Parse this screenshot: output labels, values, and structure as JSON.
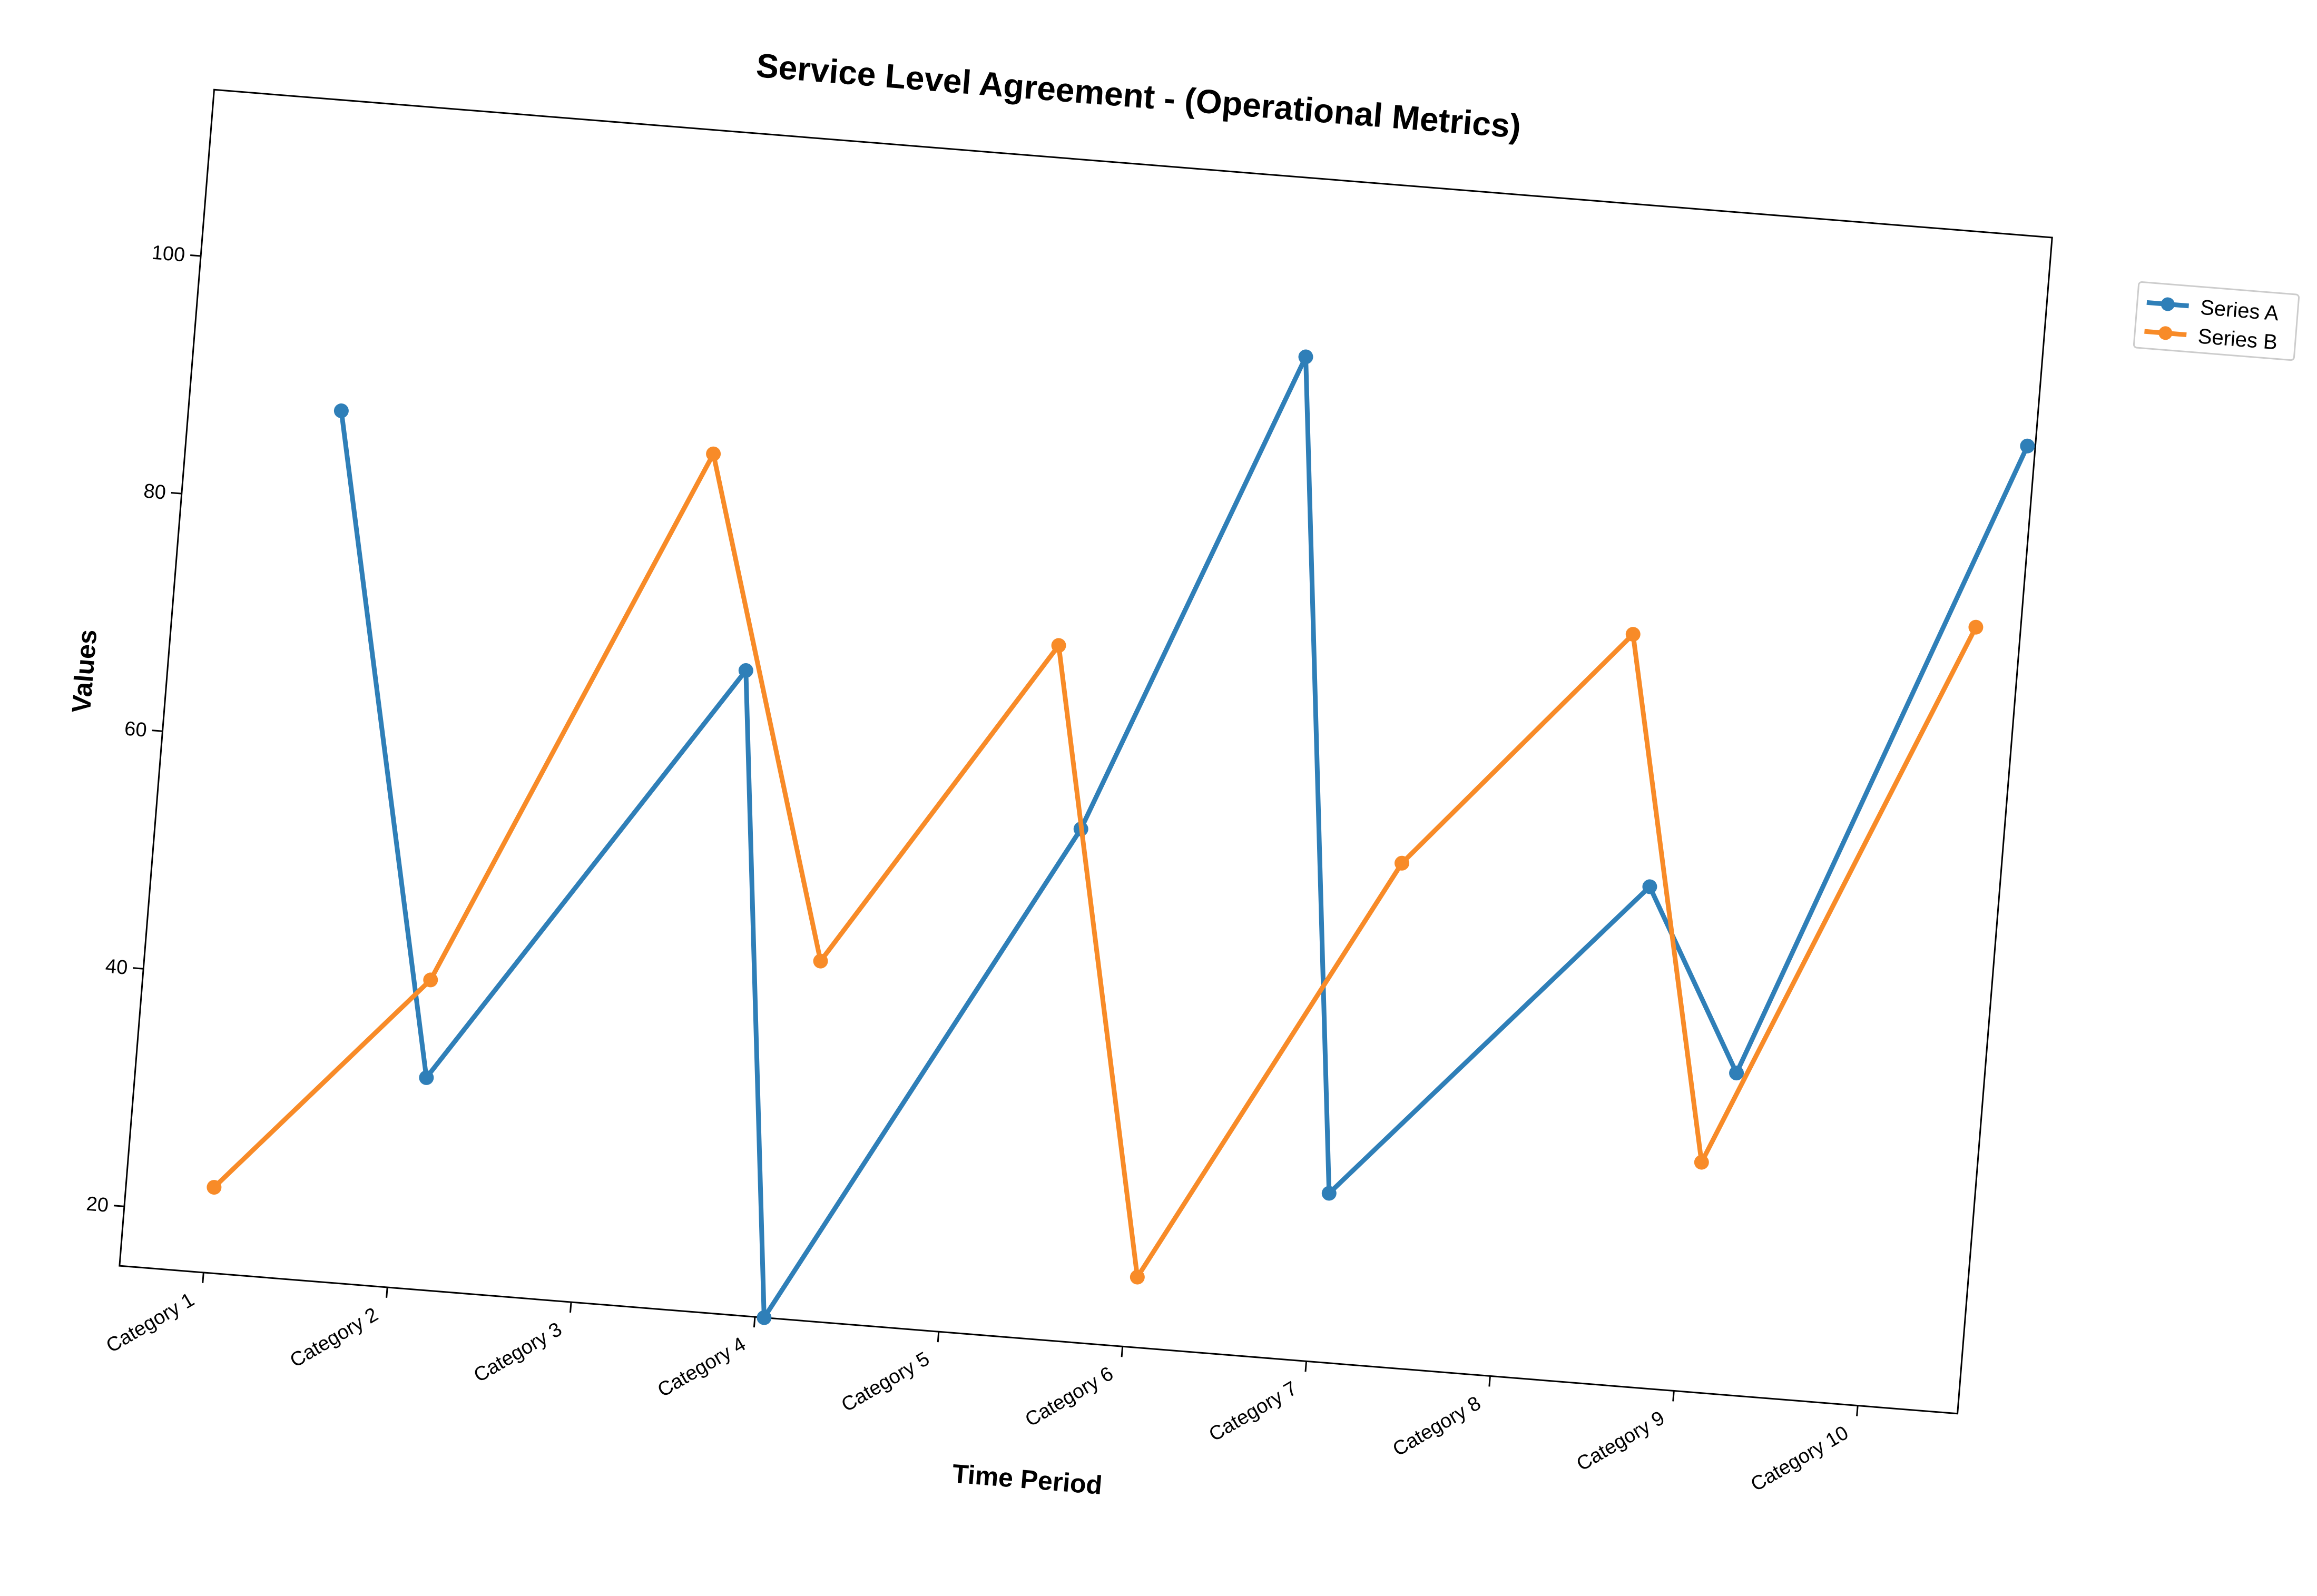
{
  "chart_data": {
    "type": "line",
    "title": "Service Level Agreement - (Operational Metrics)",
    "xlabel": "Time Period",
    "ylabel": "Values",
    "categories": [
      "Category 1",
      "Category 2",
      "Category 3",
      "Category 4",
      "Category 5",
      "Category 6",
      "Category 7",
      "Category 8",
      "Category 9",
      "Category 10"
    ],
    "yticks": [
      "20",
      "40",
      "60",
      "80",
      "100"
    ],
    "ylim": [
      15,
      114
    ],
    "grid": false,
    "legend_placement": "outside top-right",
    "series": [
      {
        "name": "Series A",
        "color": "#2f7fb8",
        "values": [
          88,
          32.8,
          69,
          15,
          58,
          99,
          29.2,
          57,
          42,
          96.4
        ]
      },
      {
        "name": "Series B",
        "color": "#f88b28",
        "values": [
          22.2,
          41,
          86.9,
          45.2,
          73.2,
          20.9,
          57.3,
          78,
          34.3,
          80.9
        ]
      }
    ]
  }
}
